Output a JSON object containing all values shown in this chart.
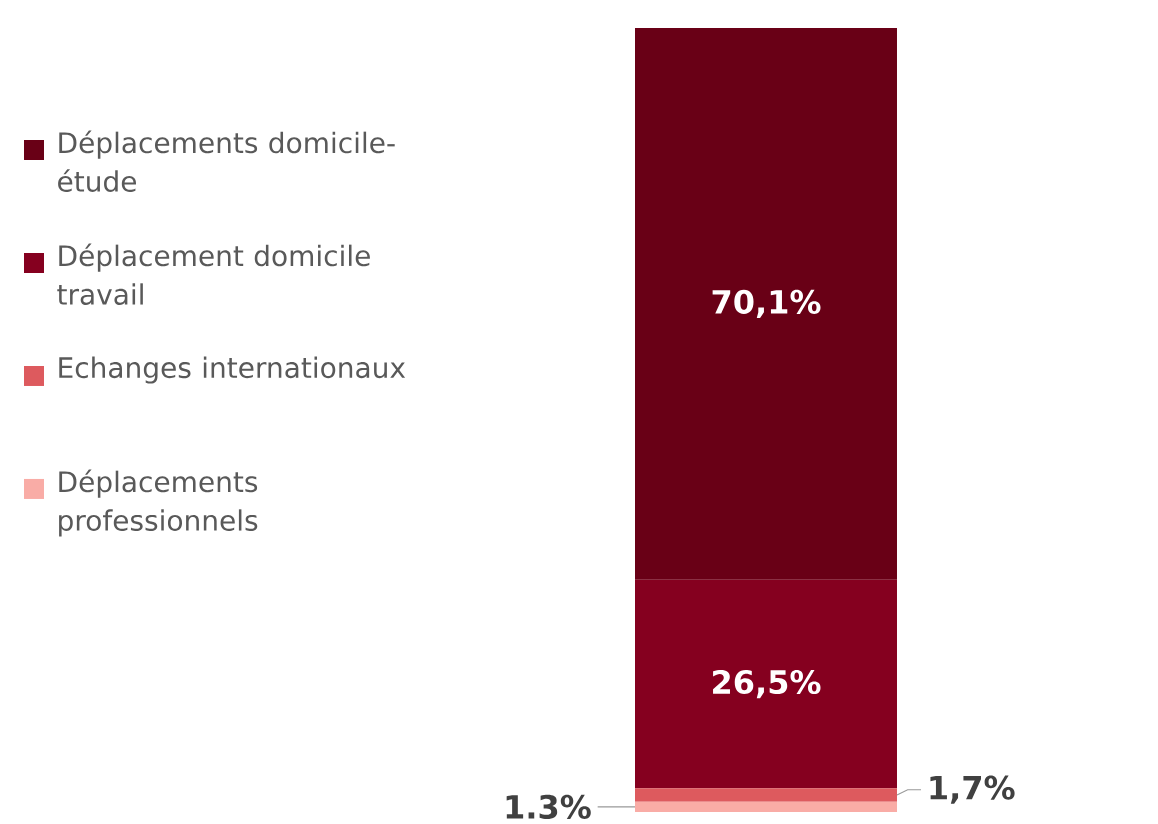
{
  "chart_data": {
    "type": "bar",
    "stacked": true,
    "categories": [
      null
    ],
    "legend": "left",
    "series": [
      {
        "name": "Déplacements professionnels",
        "color": "#f9aca6",
        "values": [
          1.3
        ],
        "value_labels": [
          "1.3%"
        ]
      },
      {
        "name": "Echanges internationaux",
        "color": "#dd5a5e",
        "values": [
          1.7
        ],
        "value_labels": [
          "1,7%"
        ]
      },
      {
        "name": "Déplacement domicile travail",
        "color": "#85001f",
        "values": [
          26.5
        ],
        "value_labels": [
          "26,5%"
        ]
      },
      {
        "name": "Déplacements domicile-étude",
        "color": "#690016",
        "values": [
          70.1
        ],
        "value_labels": [
          "70,1%"
        ]
      }
    ]
  }
}
